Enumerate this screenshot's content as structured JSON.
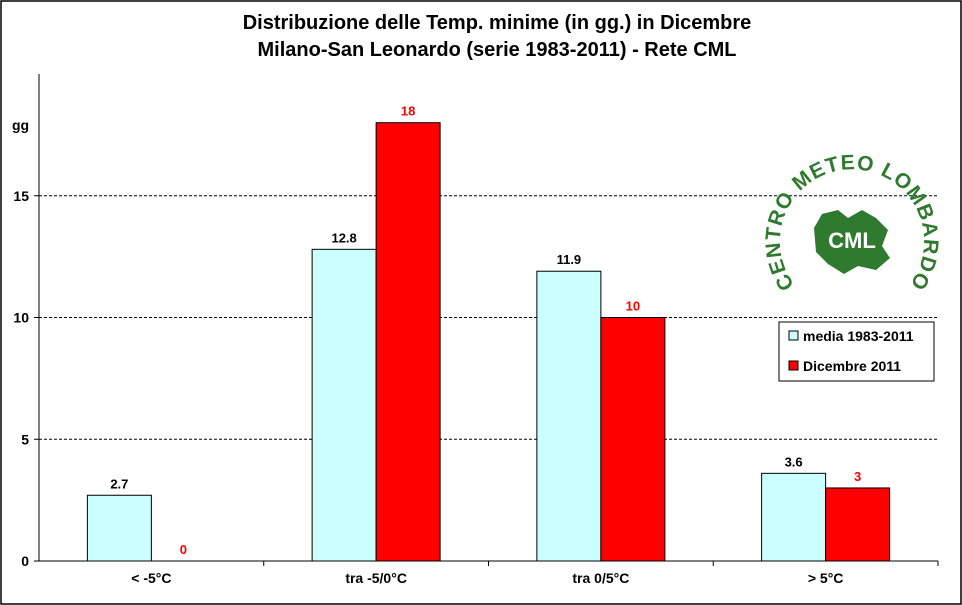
{
  "chart_data": {
    "type": "bar",
    "title": "Distribuzione  delle  Temp.  minime  (in  gg.)  in  Dicembre",
    "subtitle": "Milano-San  Leonardo  (serie  1983-2011)  - Rete  CML",
    "ylabel": "gg",
    "ylim": [
      0,
      20
    ],
    "yticks": [
      0,
      5,
      10,
      15
    ],
    "grid": true,
    "legend_position": "right",
    "categories": [
      "< -5°C",
      "tra -5/0°C",
      "tra 0/5°C",
      "> 5°C"
    ],
    "series": [
      {
        "name": "media 1983-2011",
        "values": [
          2.7,
          12.8,
          11.9,
          3.6
        ],
        "labels": [
          "2.7",
          "12.8",
          "11.9",
          "3.6"
        ],
        "color": "#ccffff",
        "label_color": "#000000"
      },
      {
        "name": "Dicembre 2011",
        "values": [
          0,
          18,
          10,
          3
        ],
        "labels": [
          "0",
          "18",
          "10",
          "3"
        ],
        "color": "#ff0000",
        "label_color": "#ff0000"
      }
    ]
  },
  "logo": {
    "ring_text": "CENTRO METEO LOMBARDO",
    "core_text": "CML",
    "color": "#2f7a2f"
  }
}
